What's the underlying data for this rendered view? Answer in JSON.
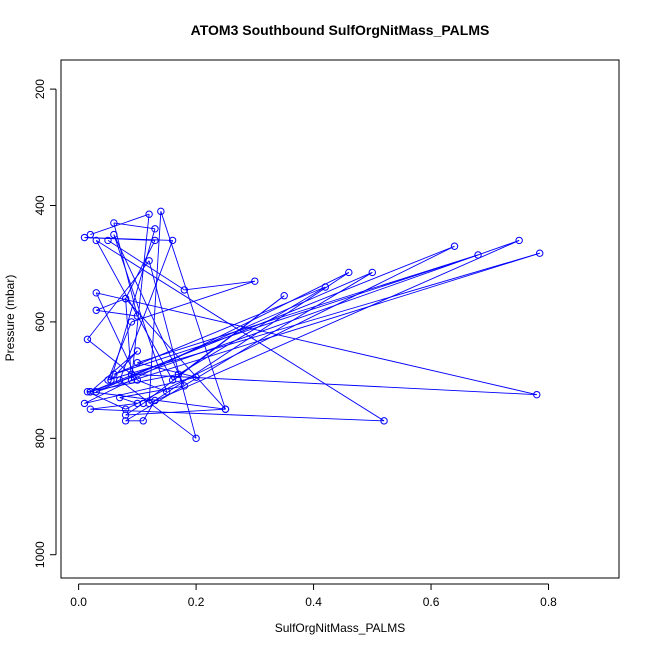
{
  "chart_data": {
    "type": "scatter",
    "title": "ATOM3 Southbound SulfOrgNitMass_PALMS",
    "xlabel": "SulfOrgNitMass_PALMS",
    "ylabel": "Pressure (mbar)",
    "xlim": [
      -0.03,
      0.92
    ],
    "ylim": [
      1040,
      150
    ],
    "y_reversed": true,
    "xticks": [
      "0.0",
      "0.2",
      "0.4",
      "0.6",
      "0.8"
    ],
    "xtick_values": [
      0,
      0.2,
      0.4,
      0.6,
      0.8
    ],
    "yticks": [
      "200",
      "400",
      "600",
      "800",
      "1000"
    ],
    "ytick_values": [
      200,
      400,
      600,
      800,
      1000
    ],
    "grid": false,
    "series": [
      {
        "color": "#0000ff",
        "marker": "open-circle",
        "line": true,
        "x": [
          0.02,
          0.12,
          0.09,
          0.08,
          0.03,
          0.1,
          0.06,
          0.13,
          0.055,
          0.1,
          0.02,
          0.25,
          0.08,
          0.13,
          0.01,
          0.16,
          0.07,
          0.2,
          0.12,
          0.015,
          0.09,
          0.78,
          0.03,
          0.1,
          0.15,
          0.06,
          0.18,
          0.07,
          0.1,
          0.02,
          0.52,
          0.03,
          0.16,
          0.35,
          0.11,
          0.08,
          0.25,
          0.14,
          0.12,
          0.75,
          0.02,
          0.64,
          0.08,
          0.015,
          0.17,
          0.42,
          0.06,
          0.68,
          0.1,
          0.2,
          0.01,
          0.46,
          0.13,
          0.11,
          0.08,
          0.5,
          0.03,
          0.785,
          0.05,
          0.09,
          0.3,
          0.18,
          0.05
        ],
        "y": [
          450,
          415,
          700,
          560,
          580,
          590,
          430,
          440,
          700,
          650,
          720,
          750,
          560,
          460,
          455,
          460,
          700,
          800,
          495,
          630,
          690,
          725,
          550,
          700,
          720,
          450,
          710,
          730,
          740,
          750,
          770,
          460,
          700,
          555,
          740,
          760,
          750,
          410,
          740,
          460,
          720,
          470,
          750,
          720,
          690,
          540,
          690,
          485,
          670,
          695,
          740,
          515,
          735,
          770,
          770,
          515,
          720,
          482,
          700,
          600,
          530,
          545,
          460
        ]
      }
    ]
  }
}
